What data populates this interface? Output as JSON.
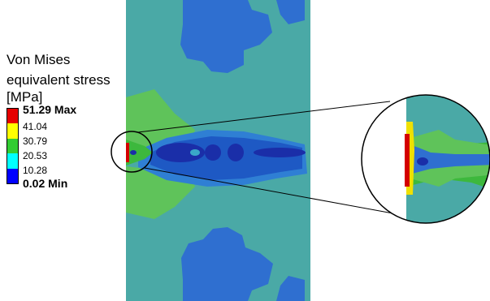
{
  "legend": {
    "title_lines": [
      "Von Mises",
      "equivalent stress",
      "[MPa]"
    ],
    "max_label": "51.29 Max",
    "min_label": "0.02 Min",
    "values": [
      "41.04",
      "30.79",
      "20.53",
      "10.28"
    ],
    "colors": [
      "#e60000",
      "#ffff00",
      "#32cd32",
      "#00ffff",
      "#0000ff"
    ]
  },
  "colors": {
    "teal_base": "#4aa9a6",
    "blue_dark": "#1e59c4",
    "blue_mid": "#2f6fd0",
    "green": "#3db83d",
    "green_light": "#5fc35a",
    "yellow": "#f0e000",
    "red": "#d40000",
    "navy": "#1a2ea8"
  }
}
